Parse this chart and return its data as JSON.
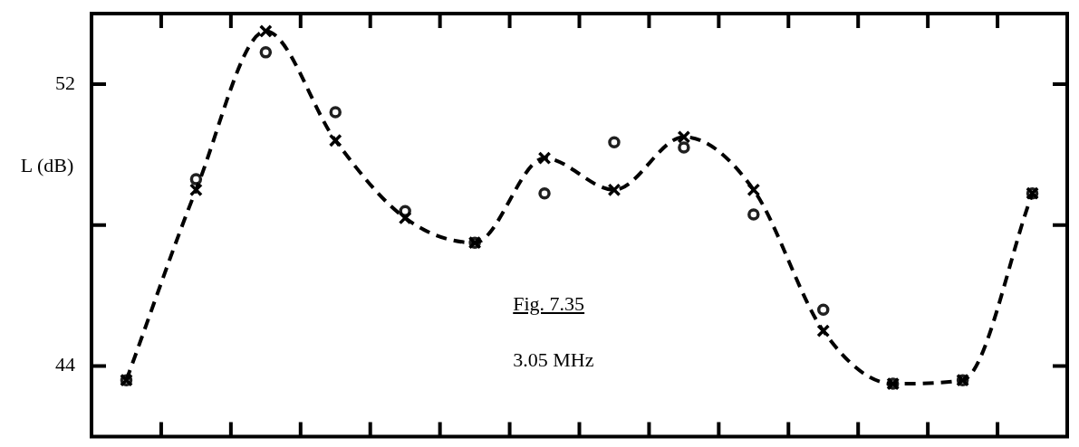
{
  "chart_data": {
    "type": "line",
    "ylabel": "L (dB)",
    "annotations": [
      "Fig. 7.35",
      "3.05 MHz"
    ],
    "categories": [
      null,
      null,
      null,
      null,
      null,
      null,
      null,
      null,
      null,
      null,
      null,
      null,
      null,
      null
    ],
    "ylim": [
      42,
      54
    ],
    "yticks": [
      44,
      {
        "value": 48,
        "label": null
      },
      52
    ],
    "tick_labels": "y",
    "grid": false,
    "legend": false,
    "series": [
      {
        "marker": "cross",
        "line_style": "dashed",
        "color": "#000000",
        "values": [
          43.6,
          49.0,
          53.5,
          50.4,
          48.2,
          47.5,
          49.9,
          49.0,
          50.5,
          49.0,
          45.0,
          43.5,
          43.6,
          48.9
        ]
      },
      {
        "type": "scatter",
        "marker": "circle",
        "color": "#202020",
        "values": [
          43.6,
          49.3,
          52.9,
          51.2,
          48.4,
          47.5,
          48.9,
          50.35,
          50.2,
          48.3,
          45.6,
          43.5,
          43.6,
          48.9
        ]
      }
    ]
  }
}
